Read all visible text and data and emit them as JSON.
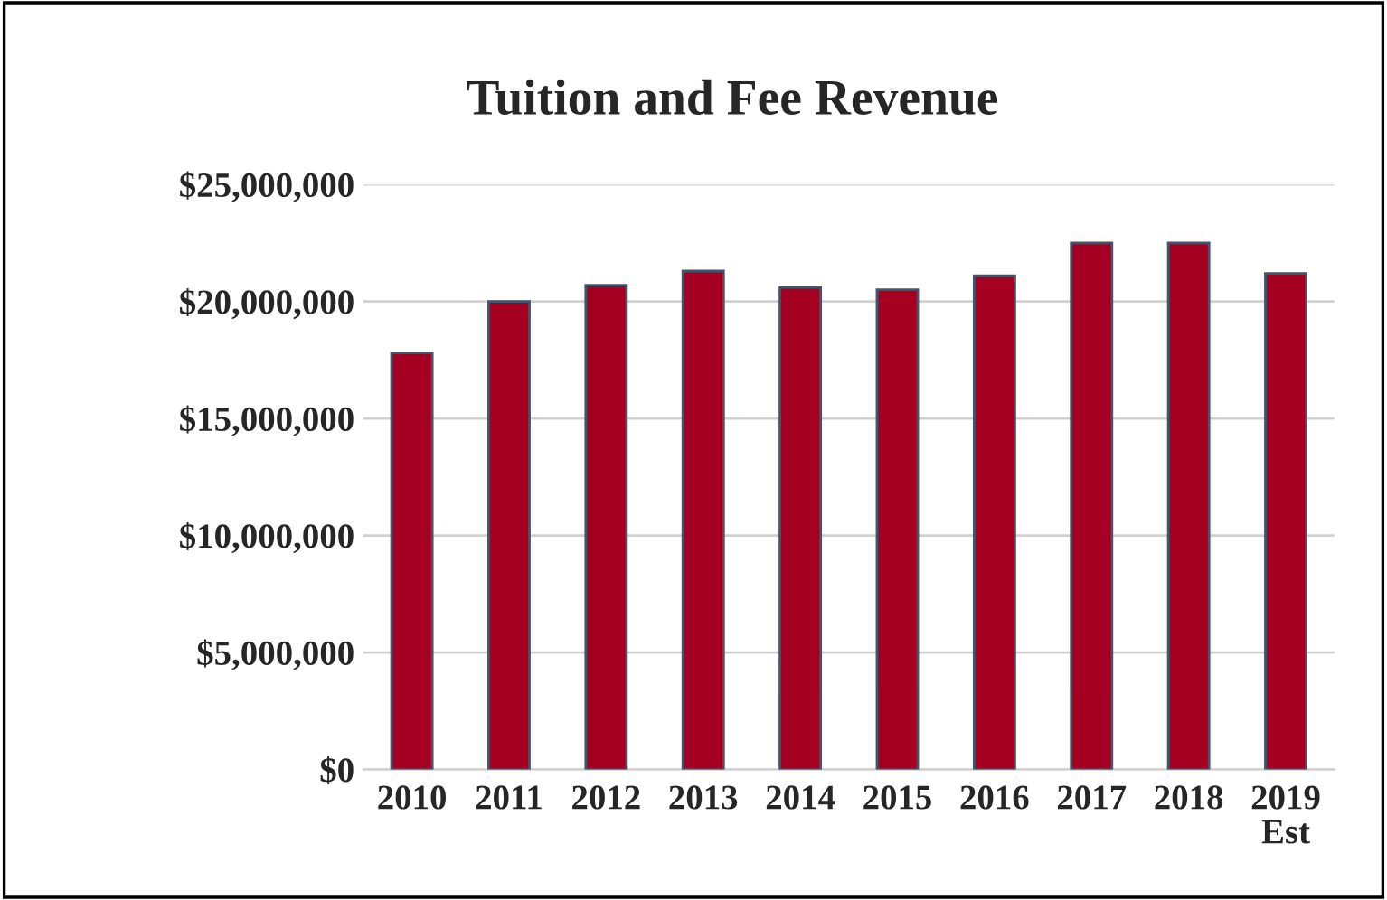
{
  "chart_data": {
    "type": "bar",
    "title": "Tuition and Fee Revenue",
    "categories": [
      "2010",
      "2011",
      "2012",
      "2013",
      "2014",
      "2015",
      "2016",
      "2017",
      "2018",
      "2019\nEst"
    ],
    "values": [
      17800000,
      20000000,
      20700000,
      21300000,
      20600000,
      20500000,
      21100000,
      22500000,
      22500000,
      21200000
    ],
    "color": "#a50021",
    "ylim": [
      0,
      25000000
    ],
    "yticks": [
      {
        "value": 0,
        "label": "$0"
      },
      {
        "value": 5000000,
        "label": "$5,000,000"
      },
      {
        "value": 10000000,
        "label": "$10,000,000"
      },
      {
        "value": 15000000,
        "label": "$15,000,000"
      },
      {
        "value": 20000000,
        "label": "$20,000,000"
      },
      {
        "value": 25000000,
        "label": "$25,000,000"
      }
    ],
    "grid": "y"
  }
}
